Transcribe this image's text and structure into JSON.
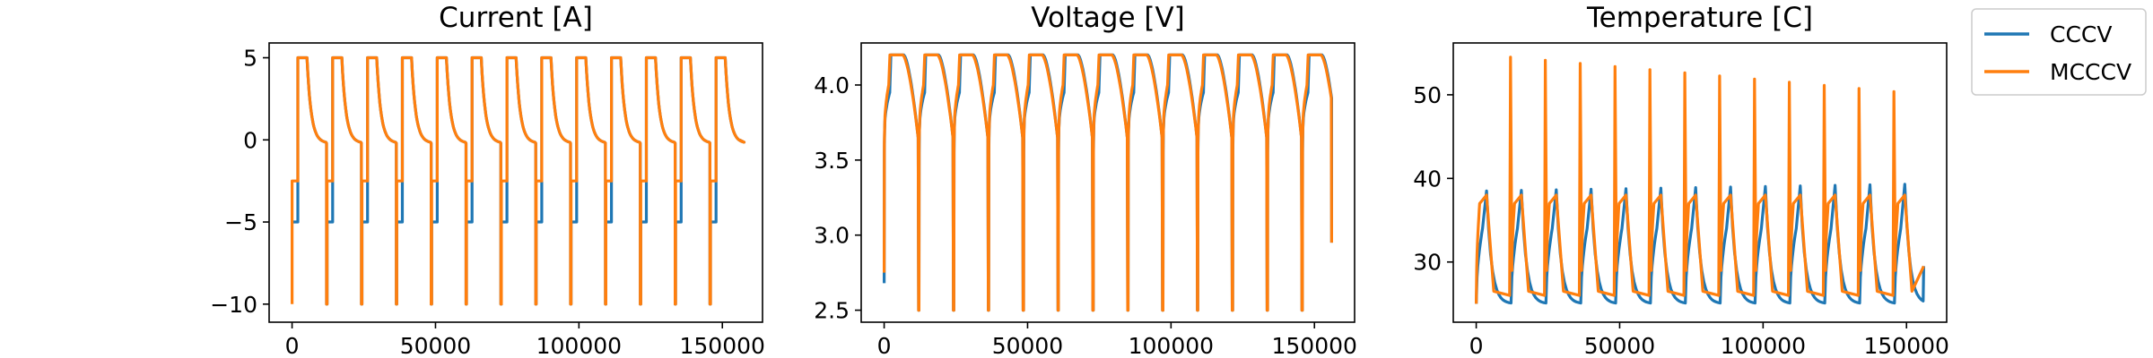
{
  "chart_data": [
    {
      "type": "line",
      "title": "Current [A]",
      "xlabel": "",
      "ylabel": "",
      "xlim": [
        -8000,
        164000
      ],
      "ylim": [
        -11.1,
        5.9
      ],
      "xticks": [
        0,
        50000,
        100000,
        150000
      ],
      "xtick_labels": [
        "0",
        "50000",
        "100000",
        "150000"
      ],
      "yticks": [
        -10,
        -5,
        0,
        5
      ],
      "ytick_labels": [
        "−10",
        "−5",
        "0",
        "5"
      ],
      "cycle_period": 12150,
      "x_end": 156000,
      "series": [
        {
          "name": "CCCV",
          "color": "#1f77b4",
          "initial": -5,
          "cycle": {
            "discharge_current": -5,
            "discharge_end_offset": 1900,
            "charge_current": 5,
            "charge_start_offset": 2000,
            "cv_start_offset": 5200,
            "taper_end_offset": 11800,
            "taper_floor": -0.2,
            "pulse_current": -10
          }
        },
        {
          "name": "MCCCV",
          "color": "#ff7f0e",
          "initial": -10,
          "cycle": {
            "discharge_current": -2.5,
            "discharge_end_offset": 1900,
            "charge_current": 5,
            "charge_start_offset": 2000,
            "cv_start_offset": 5200,
            "taper_end_offset": 11800,
            "taper_floor": -0.2,
            "pulse_current": -10
          }
        }
      ],
      "grid": false
    },
    {
      "type": "line",
      "title": "Voltage [V]",
      "xlabel": "",
      "ylabel": "",
      "xlim": [
        -8000,
        164000
      ],
      "ylim": [
        2.42,
        4.28
      ],
      "xticks": [
        0,
        50000,
        100000,
        150000
      ],
      "xtick_labels": [
        "0",
        "50000",
        "100000",
        "150000"
      ],
      "yticks": [
        2.5,
        3.0,
        3.5,
        4.0
      ],
      "ytick_labels": [
        "2.5",
        "3.0",
        "3.5",
        "4.0"
      ],
      "cycle_period": 12150,
      "x_end": 156000,
      "series": [
        {
          "name": "CCCV",
          "color": "#1f77b4",
          "start": 2.68,
          "min": 2.5,
          "max": 4.2,
          "knee": 3.95
        },
        {
          "name": "MCCCV",
          "color": "#ff7f0e",
          "start": 2.75,
          "min": 2.5,
          "max": 4.2,
          "knee": 4.0
        }
      ],
      "grid": false
    },
    {
      "type": "line",
      "title": "Temperature [C]",
      "xlabel": "",
      "ylabel": "",
      "xlim": [
        -8000,
        164000
      ],
      "ylim": [
        22.8,
        56.2
      ],
      "xticks": [
        0,
        50000,
        100000,
        150000
      ],
      "xtick_labels": [
        "0",
        "50000",
        "100000",
        "150000"
      ],
      "yticks": [
        30,
        40,
        50
      ],
      "ytick_labels": [
        "30",
        "40",
        "50"
      ],
      "cycle_period": 12150,
      "x_end": 156000,
      "series": [
        {
          "name": "CCCV",
          "color": "#1f77b4",
          "base": 25,
          "peak_first": 38.5,
          "peak_last": 39.3
        },
        {
          "name": "MCCCV",
          "color": "#ff7f0e",
          "base": 25,
          "shoulder": 37,
          "peak_first": 54.5,
          "peak_last": 50
        }
      ],
      "grid": false
    }
  ],
  "legend": {
    "placement": "right",
    "entries": [
      {
        "label": "CCCV",
        "color": "#1f77b4"
      },
      {
        "label": "MCCCV",
        "color": "#ff7f0e"
      }
    ]
  }
}
